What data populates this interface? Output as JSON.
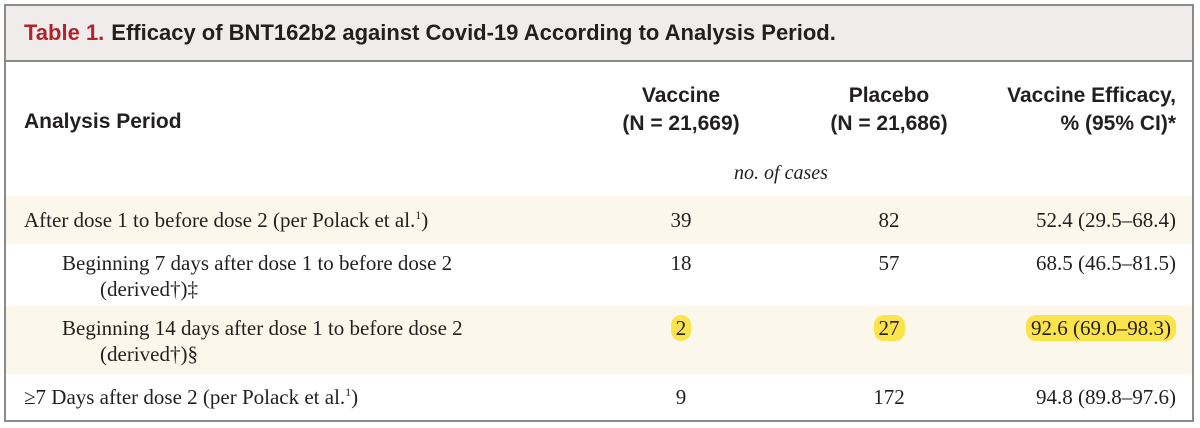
{
  "title": {
    "label": "Table 1.",
    "text": "Efficacy of BNT162b2 against Covid-19 According to Analysis Period."
  },
  "headers": {
    "period": "Analysis Period",
    "vaccine": "Vaccine",
    "vaccine_n": "(N = 21,669)",
    "placebo": "Placebo",
    "placebo_n": "(N = 21,686)",
    "efficacy": "Vaccine Efficacy,",
    "efficacy_sub": "% (95% CI)*"
  },
  "units": "no. of cases",
  "rows": [
    {
      "label": "After dose 1 to before dose 2 (per Polack et al.",
      "ref": "1",
      "label_end": ")",
      "label2": "",
      "vaccine": "39",
      "placebo": "82",
      "efficacy": "52.4 (29.5–68.4)"
    },
    {
      "label": "Beginning 7 days after dose 1 to before dose 2",
      "label2": "(derived†)‡",
      "vaccine": "18",
      "placebo": "57",
      "efficacy": "68.5 (46.5–81.5)"
    },
    {
      "label": "Beginning 14 days after dose 1 to before dose 2",
      "label2": "(derived†)§",
      "vaccine": "2",
      "placebo": "27",
      "efficacy": "92.6 (69.0–98.3)"
    },
    {
      "label": "≥7 Days after dose 2 (per Polack et al.",
      "ref": "1",
      "label_end": ")",
      "label2": "",
      "vaccine": "9",
      "placebo": "172",
      "efficacy": "94.8 (89.8–97.6)"
    }
  ],
  "colors": {
    "title_label": "#b0252c",
    "title_bg": "#f1ecec",
    "row_shade": "#fbf7ea",
    "highlight": "#fbe34b",
    "border": "#8a8a8a"
  }
}
